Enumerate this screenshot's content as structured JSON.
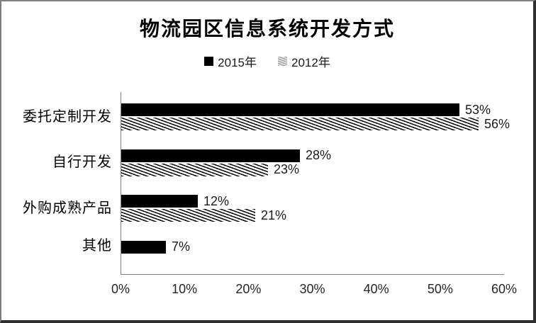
{
  "window": {
    "background": "#ffffff",
    "frame_border_light": "#7f7f7f",
    "frame_border_dark": "#2f2f2f"
  },
  "chart_data": {
    "type": "bar",
    "orientation": "horizontal",
    "title": "物流园区信息系统开发方式",
    "categories": [
      "委托定制开发",
      "自行开发",
      "外购成熟产品",
      "其他"
    ],
    "series": [
      {
        "name": "2015年",
        "style": "solid-black",
        "color": "#000000",
        "values": [
          53,
          28,
          12,
          7
        ],
        "data_labels": [
          "53%",
          "28%",
          "12%",
          "7%"
        ]
      },
      {
        "name": "2012年",
        "style": "diagonal-hatch",
        "color": "#000000",
        "values": [
          56,
          23,
          21,
          null
        ],
        "data_labels": [
          "56%",
          "23%",
          "21%",
          ""
        ]
      }
    ],
    "xlim": [
      0,
      60
    ],
    "x_tick_labels": [
      "0%",
      "10%",
      "20%",
      "30%",
      "40%",
      "50%",
      "60%"
    ],
    "ylabel": "",
    "xlabel": "",
    "grid": false,
    "legend_position": "top-center",
    "plot_background": "#ffffff",
    "axis_color": "#808080"
  }
}
